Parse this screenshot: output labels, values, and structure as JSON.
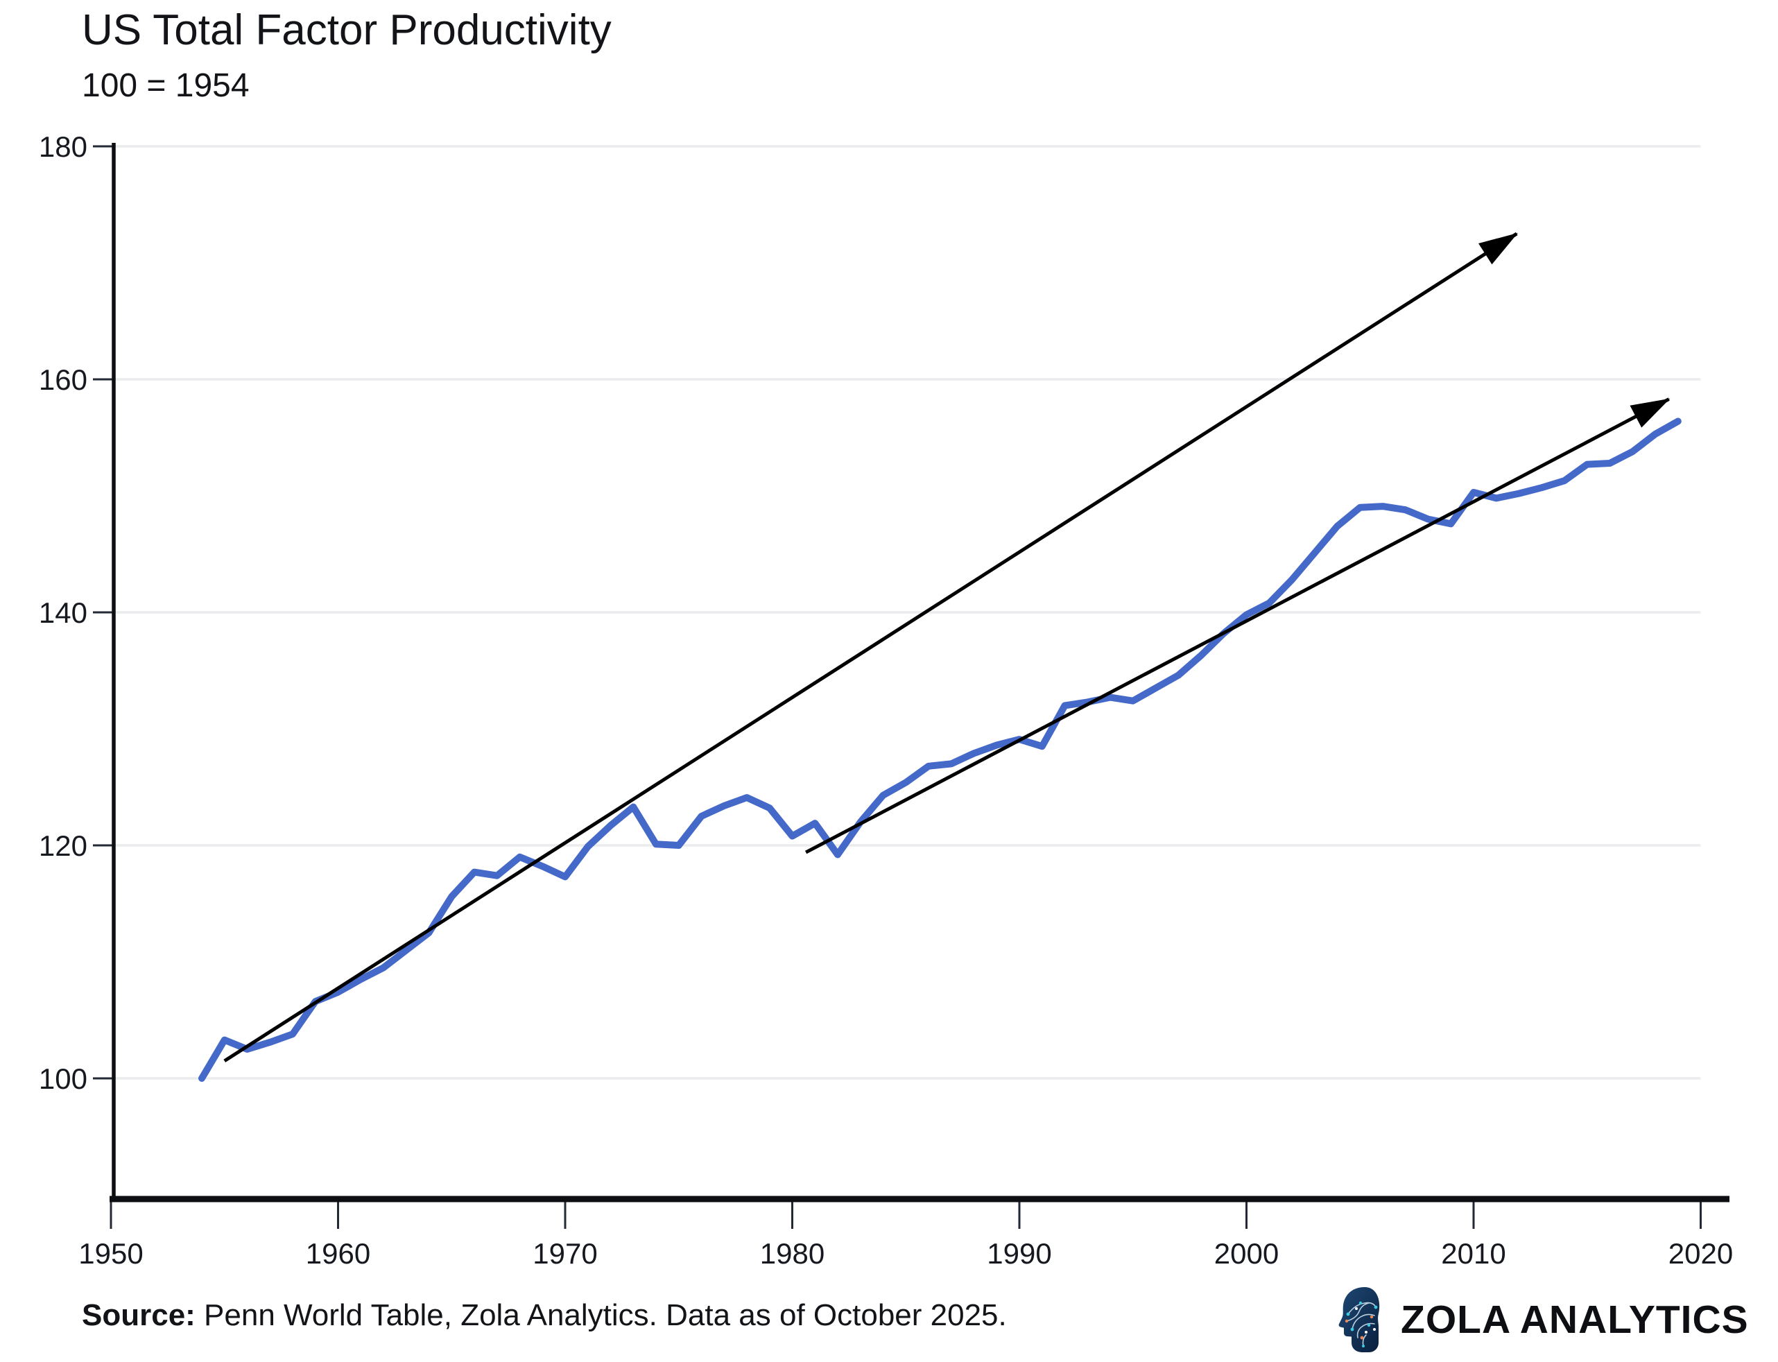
{
  "chart_data": {
    "type": "line",
    "title": "US Total Factor Productivity",
    "subtitle": "100 = 1954",
    "series": [
      {
        "name": "US total factor productivity index",
        "color": "#4569c9",
        "x": [
          1954,
          1955,
          1956,
          1957,
          1958,
          1959,
          1960,
          1961,
          1962,
          1963,
          1964,
          1965,
          1966,
          1967,
          1968,
          1969,
          1970,
          1971,
          1972,
          1973,
          1974,
          1975,
          1976,
          1977,
          1978,
          1979,
          1980,
          1981,
          1982,
          1983,
          1984,
          1985,
          1986,
          1987,
          1988,
          1989,
          1990,
          1991,
          1992,
          1993,
          1994,
          1995,
          1996,
          1997,
          1998,
          1999,
          2000,
          2001,
          2002,
          2003,
          2004,
          2005,
          2006,
          2007,
          2008,
          2009,
          2010,
          2011,
          2012,
          2013,
          2014,
          2015,
          2016,
          2017,
          2018,
          2019
        ],
        "values": [
          100.0,
          103.3,
          102.5,
          103.1,
          103.8,
          106.6,
          107.4,
          108.5,
          109.5,
          111.0,
          112.5,
          115.6,
          117.7,
          117.4,
          119.0,
          118.2,
          117.3,
          119.9,
          121.7,
          123.3,
          120.1,
          120.0,
          122.5,
          123.4,
          124.1,
          123.2,
          120.8,
          121.9,
          119.2,
          122.0,
          124.3,
          125.4,
          126.8,
          127.0,
          127.9,
          128.6,
          129.1,
          128.5,
          132.0,
          132.3,
          132.7,
          132.4,
          133.5,
          134.6,
          136.3,
          138.2,
          139.8,
          140.8,
          142.8,
          145.1,
          147.4,
          149.0,
          149.1,
          148.8,
          148.0,
          147.6,
          150.3,
          149.8,
          150.2,
          150.7,
          151.3,
          152.7,
          152.8,
          153.8,
          155.3,
          156.4
        ]
      }
    ],
    "annotations": {
      "trend_arrows": [
        {
          "from": {
            "year": 1955.0,
            "value": 101.5
          },
          "to": {
            "year": 2011.9,
            "value": 172.5
          },
          "color": "#000000"
        },
        {
          "from": {
            "year": 1980.6,
            "value": 119.4
          },
          "to": {
            "year": 2018.6,
            "value": 158.3
          },
          "color": "#000000"
        }
      ]
    },
    "x_axis": {
      "ticks": [
        1950,
        1960,
        1970,
        1980,
        1990,
        2000,
        2010,
        2020
      ],
      "tick_labels": [
        "1950",
        "1960",
        "1970",
        "1980",
        "1990",
        "2000",
        "2010",
        "2020"
      ],
      "range": [
        1950,
        2020
      ]
    },
    "y_axis": {
      "ticks": [
        100,
        120,
        140,
        160,
        180
      ],
      "tick_labels": [
        "100",
        "120",
        "140",
        "160",
        "180"
      ],
      "range": [
        89.5,
        180
      ]
    },
    "grid": {
      "horizontal": true,
      "vertical": false,
      "color": "#ebecee"
    },
    "axis_color": "#0c0e12",
    "legend": "none"
  },
  "footer": {
    "source_label": "Source:",
    "source_rest": " Penn World Table, Zola Analytics. Data as of October 2025.",
    "brand": "ZOLA ANALYTICS",
    "brand_icon": "circuit-head-icon",
    "brand_icon_colors": {
      "head_dark": "#0b1f3d",
      "head_light": "#1d4975",
      "trace": "#d8ecf6",
      "node_cyan": "#3fc9e0",
      "node_orange": "#e8875a",
      "node_white": "#ffffff"
    }
  }
}
